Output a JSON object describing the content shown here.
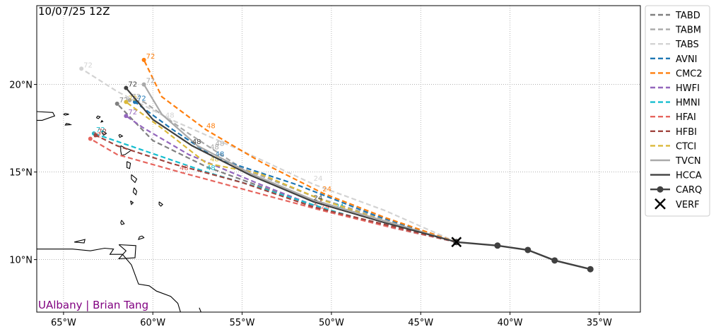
{
  "map": {
    "title": "10/07/25 12Z",
    "credit": "UAlbany | Brian Tang",
    "credit_color": "#800080",
    "extent": {
      "lon": [
        -66.5,
        -32.7
      ],
      "lat": [
        7.0,
        24.5
      ]
    },
    "grid": true,
    "x_ticks": [
      {
        "value": -65,
        "label": "65°W"
      },
      {
        "value": -60,
        "label": "60°W"
      },
      {
        "value": -55,
        "label": "55°W"
      },
      {
        "value": -50,
        "label": "50°W"
      },
      {
        "value": -45,
        "label": "45°W"
      },
      {
        "value": -40,
        "label": "40°W"
      },
      {
        "value": -35,
        "label": "35°W"
      }
    ],
    "y_ticks": [
      {
        "value": 10,
        "label": "10°N"
      },
      {
        "value": 15,
        "label": "15°N"
      },
      {
        "value": 20,
        "label": "20°N"
      }
    ]
  },
  "tracks": [
    {
      "name": "TABD",
      "color": "#808080",
      "dash": true,
      "points": [
        [
          -43.0,
          11.0
        ],
        [
          -46.5,
          11.9
        ],
        [
          -50.0,
          12.7
        ],
        [
          -53.5,
          14.0
        ],
        [
          -57.0,
          15.3
        ],
        [
          -60.0,
          16.8
        ],
        [
          -62.0,
          18.9
        ]
      ],
      "labels": [],
      "end_label": "72"
    },
    {
      "name": "TABM",
      "color": "#a9a9a9",
      "dash": true,
      "points": [
        [
          -43.0,
          11.0
        ],
        [
          -47.0,
          12.3
        ],
        [
          -51.0,
          13.6
        ],
        [
          -55.0,
          15.2
        ],
        [
          -58.0,
          17.2
        ],
        [
          -60.5,
          19.0
        ],
        [
          -61.3,
          19.1
        ]
      ],
      "labels": [
        {
          "lon": -56.8,
          "lat": 16.3,
          "text": "48"
        }
      ],
      "end_label": "72"
    },
    {
      "name": "TABS",
      "color": "#d3d3d3",
      "dash": true,
      "points": [
        [
          -43.0,
          11.0
        ],
        [
          -47.0,
          12.8
        ],
        [
          -51.0,
          14.3
        ],
        [
          -55.0,
          16.2
        ],
        [
          -59.0,
          18.0
        ],
        [
          -62.0,
          19.6
        ],
        [
          -64.0,
          20.9
        ]
      ],
      "labels": [
        {
          "lon": -51.0,
          "lat": 14.5,
          "text": "24"
        },
        {
          "lon": -59.3,
          "lat": 18.1,
          "text": "48"
        }
      ],
      "end_label": "72"
    },
    {
      "name": "AVNI",
      "color": "#1f77b4",
      "dash": true,
      "points": [
        [
          -43.0,
          11.0
        ],
        [
          -47.5,
          12.5
        ],
        [
          -52.0,
          14.3
        ],
        [
          -56.5,
          15.8
        ],
        [
          -59.0,
          17.5
        ],
        [
          -61.0,
          19.0
        ]
      ],
      "labels": [
        {
          "lon": -56.5,
          "lat": 15.9,
          "text": "48"
        }
      ],
      "end_label": "72"
    },
    {
      "name": "CMC2",
      "color": "#ff7f0e",
      "dash": true,
      "points": [
        [
          -43.0,
          11.0
        ],
        [
          -47.0,
          12.4
        ],
        [
          -50.5,
          13.8
        ],
        [
          -54.0,
          15.6
        ],
        [
          -57.0,
          17.4
        ],
        [
          -59.5,
          19.3
        ],
        [
          -60.5,
          21.4
        ]
      ],
      "labels": [
        {
          "lon": -50.5,
          "lat": 13.9,
          "text": "24"
        },
        {
          "lon": -57.0,
          "lat": 17.5,
          "text": "48"
        }
      ],
      "end_label": "72"
    },
    {
      "name": "HWFI",
      "color": "#9467bd",
      "dash": true,
      "points": [
        [
          -43.0,
          11.0
        ],
        [
          -46.5,
          11.8
        ],
        [
          -50.0,
          12.7
        ],
        [
          -54.0,
          14.3
        ],
        [
          -58.0,
          16.0
        ],
        [
          -60.5,
          17.5
        ],
        [
          -61.5,
          18.2
        ]
      ],
      "labels": [],
      "end_label": "72"
    },
    {
      "name": "HMNI",
      "color": "#17becf",
      "dash": true,
      "points": [
        [
          -43.0,
          11.0
        ],
        [
          -46.5,
          11.8
        ],
        [
          -50.0,
          12.8
        ],
        [
          -54.0,
          14.1
        ],
        [
          -57.0,
          15.0
        ],
        [
          -61.0,
          16.4
        ],
        [
          -63.3,
          17.2
        ]
      ],
      "labels": [
        {
          "lon": -49.8,
          "lat": 12.9,
          "text": "24"
        },
        {
          "lon": -57.0,
          "lat": 15.1,
          "text": "48"
        }
      ],
      "end_label": "72"
    },
    {
      "name": "HFAI",
      "color": "#e6655e",
      "dash": true,
      "points": [
        [
          -43.0,
          11.0
        ],
        [
          -46.5,
          11.8
        ],
        [
          -50.5,
          12.8
        ],
        [
          -54.5,
          13.9
        ],
        [
          -58.5,
          15.0
        ],
        [
          -62.0,
          16.0
        ],
        [
          -63.5,
          16.9
        ]
      ],
      "labels": [
        {
          "lon": -50.6,
          "lat": 12.9,
          "text": "24"
        },
        {
          "lon": -58.5,
          "lat": 15.1,
          "text": "48"
        }
      ],
      "end_label": "72"
    },
    {
      "name": "HFBI",
      "color": "#a0453f",
      "dash": true,
      "points": [
        [
          -43.0,
          11.0
        ],
        [
          -47.0,
          12.0
        ],
        [
          -51.0,
          13.0
        ],
        [
          -55.0,
          14.4
        ],
        [
          -59.0,
          15.5
        ],
        [
          -62.0,
          16.5
        ],
        [
          -63.2,
          17.1
        ]
      ],
      "labels": [
        {
          "lon": -51.0,
          "lat": 13.1,
          "text": "24"
        }
      ],
      "end_label": "72"
    },
    {
      "name": "CTCI",
      "color": "#dbb93a",
      "dash": true,
      "points": [
        [
          -43.0,
          11.0
        ],
        [
          -47.0,
          12.2
        ],
        [
          -50.5,
          13.4
        ],
        [
          -54.0,
          14.9
        ],
        [
          -57.0,
          15.5
        ],
        [
          -59.5,
          17.5
        ],
        [
          -61.5,
          19.0
        ]
      ],
      "labels": [
        {
          "lon": -56.8,
          "lat": 15.6,
          "text": "48"
        }
      ],
      "end_label": "72"
    },
    {
      "name": "TVCN",
      "color": "#a9a9a9",
      "dash": false,
      "points": [
        [
          -43.0,
          11.0
        ],
        [
          -47.0,
          12.2
        ],
        [
          -51.0,
          13.4
        ],
        [
          -54.5,
          14.9
        ],
        [
          -57.5,
          16.5
        ],
        [
          -59.5,
          18.3
        ],
        [
          -60.5,
          20.0
        ]
      ],
      "labels": [
        {
          "lon": -56.5,
          "lat": 16.5,
          "text": "48"
        }
      ],
      "end_label": "72"
    },
    {
      "name": "HCCA",
      "color": "#404040",
      "dash": false,
      "points": [
        [
          -43.0,
          11.0
        ],
        [
          -47.0,
          12.1
        ],
        [
          -51.0,
          13.3
        ],
        [
          -54.5,
          14.8
        ],
        [
          -57.8,
          16.5
        ],
        [
          -60.0,
          18.0
        ],
        [
          -61.5,
          19.8
        ]
      ],
      "labels": [
        {
          "lon": -51.0,
          "lat": 13.4,
          "text": "24"
        },
        {
          "lon": -57.8,
          "lat": 16.6,
          "text": "48"
        }
      ],
      "end_label": "72"
    }
  ],
  "carq": {
    "name": "CARQ",
    "color": "#404040",
    "points": [
      [
        -35.5,
        9.45
      ],
      [
        -37.5,
        9.95
      ],
      [
        -39.0,
        10.55
      ],
      [
        -40.7,
        10.8
      ],
      [
        -43.0,
        11.0
      ]
    ]
  },
  "verf": {
    "name": "VERF",
    "lon": -43.0,
    "lat": 11.0,
    "color": "#000000"
  },
  "legend": [
    {
      "label": "TABD",
      "color": "#808080",
      "style": "dash"
    },
    {
      "label": "TABM",
      "color": "#a9a9a9",
      "style": "dash"
    },
    {
      "label": "TABS",
      "color": "#d3d3d3",
      "style": "dash"
    },
    {
      "label": "AVNI",
      "color": "#1f77b4",
      "style": "dash"
    },
    {
      "label": "CMC2",
      "color": "#ff7f0e",
      "style": "dash"
    },
    {
      "label": "HWFI",
      "color": "#9467bd",
      "style": "dash"
    },
    {
      "label": "HMNI",
      "color": "#17becf",
      "style": "dash"
    },
    {
      "label": "HFAI",
      "color": "#e6655e",
      "style": "dash"
    },
    {
      "label": "HFBI",
      "color": "#a0453f",
      "style": "dash"
    },
    {
      "label": "CTCI",
      "color": "#dbb93a",
      "style": "dash"
    },
    {
      "label": "TVCN",
      "color": "#a9a9a9",
      "style": "solid"
    },
    {
      "label": "HCCA",
      "color": "#404040",
      "style": "solid"
    },
    {
      "label": "CARQ",
      "color": "#404040",
      "style": "marker-line"
    },
    {
      "label": "VERF",
      "color": "#000000",
      "style": "x"
    }
  ],
  "coastlines": [
    [
      [
        -66.5,
        18.45
      ],
      [
        -65.6,
        18.4
      ],
      [
        -65.5,
        18.2
      ],
      [
        -66.2,
        17.95
      ],
      [
        -66.5,
        17.95
      ]
    ],
    [
      [
        -64.9,
        18.35
      ],
      [
        -64.7,
        18.3
      ],
      [
        -64.9,
        18.25
      ],
      [
        -65.0,
        18.3
      ],
      [
        -64.9,
        18.35
      ]
    ],
    [
      [
        -64.7,
        17.75
      ],
      [
        -64.6,
        17.7
      ],
      [
        -64.9,
        17.68
      ],
      [
        -64.85,
        17.77
      ],
      [
        -64.7,
        17.75
      ]
    ],
    [
      [
        -63.1,
        18.2
      ],
      [
        -62.95,
        18.15
      ],
      [
        -63.05,
        18.05
      ],
      [
        -63.15,
        18.1
      ],
      [
        -63.1,
        18.2
      ]
    ],
    [
      [
        -62.85,
        17.95
      ],
      [
        -62.8,
        17.88
      ],
      [
        -62.9,
        17.85
      ],
      [
        -62.85,
        17.95
      ]
    ],
    [
      [
        -62.8,
        17.35
      ],
      [
        -62.6,
        17.2
      ],
      [
        -62.75,
        17.1
      ],
      [
        -62.85,
        17.25
      ],
      [
        -62.8,
        17.35
      ]
    ],
    [
      [
        -61.85,
        17.15
      ],
      [
        -61.7,
        17.05
      ],
      [
        -61.85,
        16.98
      ],
      [
        -61.9,
        17.1
      ],
      [
        -61.85,
        17.15
      ]
    ],
    [
      [
        -61.8,
        16.5
      ],
      [
        -61.5,
        16.35
      ],
      [
        -61.2,
        16.25
      ],
      [
        -61.55,
        16.0
      ],
      [
        -61.75,
        15.95
      ],
      [
        -61.8,
        16.2
      ],
      [
        -61.8,
        16.5
      ]
    ],
    [
      [
        -61.45,
        15.6
      ],
      [
        -61.25,
        15.5
      ],
      [
        -61.3,
        15.2
      ],
      [
        -61.45,
        15.25
      ],
      [
        -61.45,
        15.6
      ]
    ],
    [
      [
        -61.2,
        14.85
      ],
      [
        -60.9,
        14.6
      ],
      [
        -61.0,
        14.4
      ],
      [
        -61.2,
        14.6
      ],
      [
        -61.2,
        14.85
      ]
    ],
    [
      [
        -61.05,
        14.1
      ],
      [
        -60.9,
        13.9
      ],
      [
        -60.95,
        13.7
      ],
      [
        -61.1,
        13.85
      ],
      [
        -61.05,
        14.1
      ]
    ],
    [
      [
        -59.65,
        13.3
      ],
      [
        -59.45,
        13.15
      ],
      [
        -59.55,
        13.05
      ],
      [
        -59.65,
        13.15
      ],
      [
        -59.65,
        13.3
      ]
    ],
    [
      [
        -61.25,
        13.35
      ],
      [
        -61.1,
        13.25
      ],
      [
        -61.2,
        13.15
      ],
      [
        -61.25,
        13.35
      ]
    ],
    [
      [
        -61.75,
        12.25
      ],
      [
        -61.6,
        12.05
      ],
      [
        -61.75,
        12.0
      ],
      [
        -61.8,
        12.1
      ],
      [
        -61.75,
        12.25
      ]
    ],
    [
      [
        -60.6,
        11.35
      ],
      [
        -60.5,
        11.25
      ],
      [
        -60.8,
        11.15
      ],
      [
        -60.75,
        11.3
      ],
      [
        -60.6,
        11.35
      ]
    ],
    [
      [
        -61.9,
        10.85
      ],
      [
        -60.95,
        10.8
      ],
      [
        -61.0,
        10.1
      ],
      [
        -61.9,
        10.05
      ],
      [
        -61.5,
        10.5
      ],
      [
        -61.9,
        10.85
      ]
    ],
    [
      [
        -66.5,
        10.6
      ],
      [
        -64.5,
        10.6
      ],
      [
        -63.5,
        10.5
      ],
      [
        -62.7,
        10.65
      ],
      [
        -62.2,
        10.6
      ],
      [
        -62.4,
        10.3
      ],
      [
        -61.7,
        10.3
      ],
      [
        -61.2,
        9.7
      ],
      [
        -60.8,
        8.6
      ],
      [
        -60.2,
        8.5
      ],
      [
        -59.8,
        8.2
      ],
      [
        -59.0,
        7.9
      ],
      [
        -58.6,
        7.5
      ],
      [
        -58.45,
        7.0
      ]
    ],
    [
      [
        -64.4,
        11.0
      ],
      [
        -63.8,
        11.15
      ],
      [
        -63.85,
        10.95
      ],
      [
        -64.4,
        11.0
      ]
    ],
    [
      [
        -57.3,
        7.0
      ],
      [
        -57.4,
        7.25
      ]
    ]
  ]
}
